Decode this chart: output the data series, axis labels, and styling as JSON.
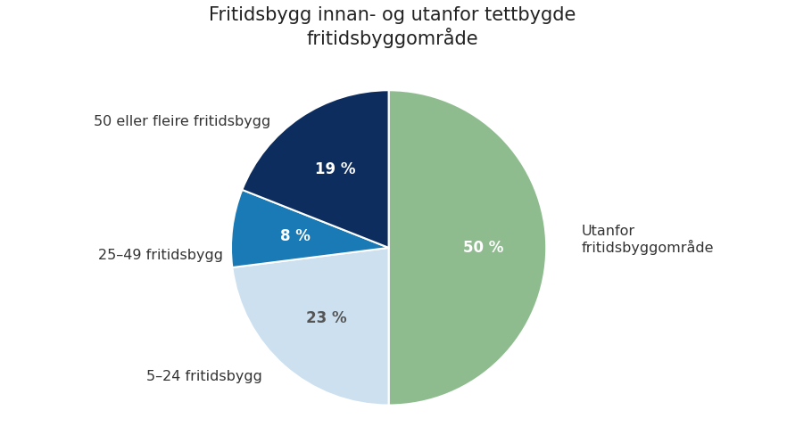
{
  "title": "Fritidsbygg innan- og utanfor tettbygde\nfritidsbyggområde",
  "slices": [
    50,
    23,
    8,
    19
  ],
  "labels_ext": [
    "Utanfor\nfritidsbyggområde",
    "5–24 fritidsbygg",
    "25–49 fritidsbygg",
    "50 eller fleire fritidsbygg"
  ],
  "pct_labels": [
    "50 %",
    "23 %",
    "8 %",
    "19 %"
  ],
  "colors": [
    "#8fbc8f",
    "#cce0f0",
    "#1a7ab5",
    "#0d2d5e"
  ],
  "pct_colors": [
    "white",
    "#555555",
    "white",
    "white"
  ],
  "startangle": 90,
  "title_fontsize": 15,
  "label_fontsize": 11.5,
  "pct_fontsize": 12,
  "background_color": "#ffffff"
}
